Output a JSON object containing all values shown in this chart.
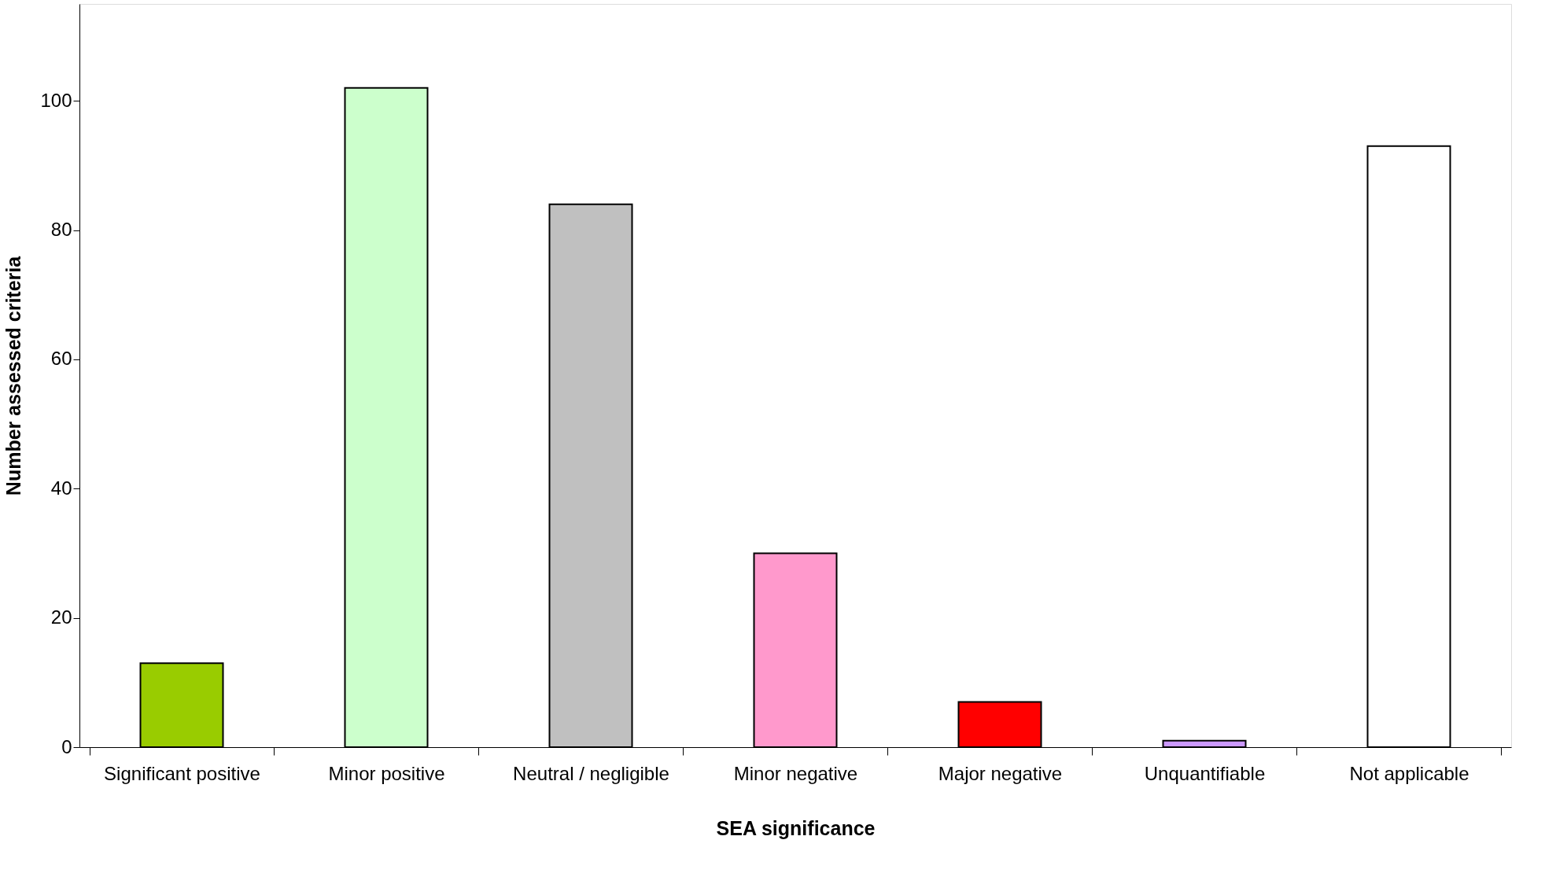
{
  "chart_data": {
    "type": "bar",
    "xlabel": "SEA significance",
    "ylabel": "Number assessed criteria",
    "categories": [
      "Significant positive",
      "Minor positive",
      "Neutral / negligible",
      "Minor negative",
      "Major negative",
      "Unquantifiable",
      "Not applicable"
    ],
    "values": [
      13,
      102,
      84,
      30,
      7,
      1,
      93
    ],
    "colors": [
      "#99cc00",
      "#ccffcc",
      "#c0c0c0",
      "#ff99cc",
      "#ff0000",
      "#cc99ff",
      "#ffffff"
    ],
    "ylim": [
      0,
      115
    ],
    "yticks": [
      0,
      20,
      40,
      60,
      80,
      100
    ],
    "grid": false
  }
}
